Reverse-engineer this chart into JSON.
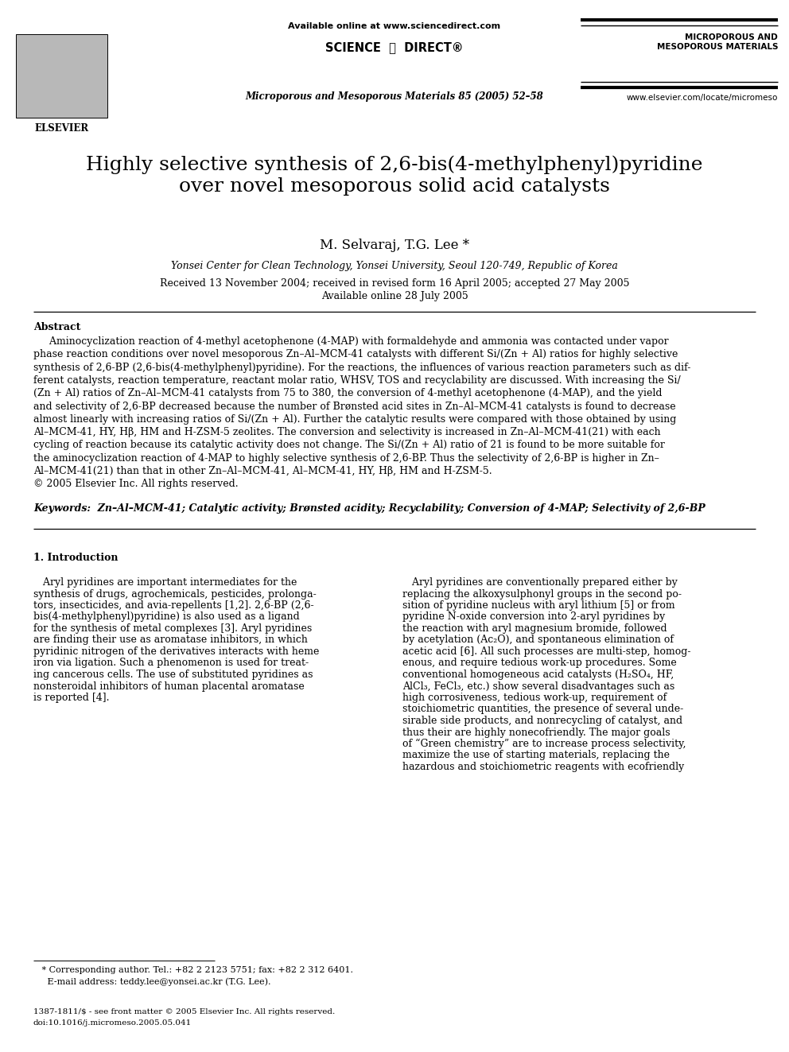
{
  "background_color": "#ffffff",
  "header": {
    "available_online": "Available online at www.sciencedirect.com",
    "journal_name": "Microporous and Mesoporous Materials 85 (2005) 52–58",
    "journal_right_top": "MICROPOROUS AND\nMESOPOROUS MATERIALS",
    "journal_right_bottom": "www.elsevier.com/locate/micromeso",
    "elsevier_label": "ELSEVIER"
  },
  "title": "Highly selective synthesis of 2,6-bis(4-methylphenyl)pyridine\nover novel mesoporous solid acid catalysts",
  "authors": "M. Selvaraj, T.G. Lee *",
  "affiliation": "Yonsei Center for Clean Technology, Yonsei University, Seoul 120-749, Republic of Korea",
  "received_line1": "Received 13 November 2004; received in revised form 16 April 2005; accepted 27 May 2005",
  "received_line2": "Available online 28 July 2005",
  "abstract_title": "Abstract",
  "abstract_text": "     Aminocyclization reaction of 4-methyl acetophenone (4-MAP) with formaldehyde and ammonia was contacted under vapor\nphase reaction conditions over novel mesoporous Zn–Al–MCM-41 catalysts with different Si/(Zn + Al) ratios for highly selective\nsynthesis of 2,6-BP (2,6-bis(4-methylphenyl)pyridine). For the reactions, the influences of various reaction parameters such as dif-\nferent catalysts, reaction temperature, reactant molar ratio, WHSV, TOS and recyclability are discussed. With increasing the Si/\n(Zn + Al) ratios of Zn–Al–MCM-41 catalysts from 75 to 380, the conversion of 4-methyl acetophenone (4-MAP), and the yield\nand selectivity of 2,6-BP decreased because the number of Brønsted acid sites in Zn–Al–MCM-41 catalysts is found to decrease\nalmost linearly with increasing ratios of Si/(Zn + Al). Further the catalytic results were compared with those obtained by using\nAl–MCM-41, HY, Hβ, HM and H-ZSM-5 zeolites. The conversion and selectivity is increased in Zn–Al–MCM-41(21) with each\ncycling of reaction because its catalytic activity does not change. The Si/(Zn + Al) ratio of 21 is found to be more suitable for\nthe aminocyclization reaction of 4-MAP to highly selective synthesis of 2,6-BP. Thus the selectivity of 2,6-BP is higher in Zn–\nAl–MCM-41(21) than that in other Zn–Al–MCM-41, Al–MCM-41, HY, Hβ, HM and H-ZSM-5.\n© 2005 Elsevier Inc. All rights reserved.",
  "keywords": "Keywords:  Zn–Al–MCM-41; Catalytic activity; Brønsted acidity; Recyclability; Conversion of 4-MAP; Selectivity of 2,6-BP",
  "section1_title": "1. Introduction",
  "intro_left_lines": [
    "   Aryl pyridines are important intermediates for the",
    "synthesis of drugs, agrochemicals, pesticides, prolonga-",
    "tors, insecticides, and avia-repellents [1,2]. 2,6-BP (2,6-",
    "bis(4-methylphenyl)pyridine) is also used as a ligand",
    "for the synthesis of metal complexes [3]. Aryl pyridines",
    "are finding their use as aromatase inhibitors, in which",
    "pyridinic nitrogen of the derivatives interacts with heme",
    "iron via ligation. Such a phenomenon is used for treat-",
    "ing cancerous cells. The use of substituted pyridines as",
    "nonsteroidal inhibitors of human placental aromatase",
    "is reported [4]."
  ],
  "intro_right_lines": [
    "   Aryl pyridines are conventionally prepared either by",
    "replacing the alkoxysulphonyl groups in the second po-",
    "sition of pyridine nucleus with aryl lithium [5] or from",
    "pyridine N-oxide conversion into 2-aryl pyridines by",
    "the reaction with aryl magnesium bromide, followed",
    "by acetylation (Ac₂O), and spontaneous elimination of",
    "acetic acid [6]. All such processes are multi-step, homog-",
    "enous, and require tedious work-up procedures. Some",
    "conventional homogeneous acid catalysts (H₂SO₄, HF,",
    "AlCl₃, FeCl₃, etc.) show several disadvantages such as",
    "high corrosiveness, tedious work-up, requirement of",
    "stoichiometric quantities, the presence of several unde-",
    "sirable side products, and nonrecycling of catalyst, and",
    "thus their are highly nonecofriendly. The major goals",
    "of “Green chemistry” are to increase process selectivity,",
    "maximize the use of starting materials, replacing the",
    "hazardous and stoichiometric reagents with ecofriendly"
  ],
  "footnote_star": "   * Corresponding author. Tel.: +82 2 2123 5751; fax: +82 2 312 6401.",
  "footnote_email": "     E-mail address: teddy.lee@yonsei.ac.kr (T.G. Lee).",
  "footnote_bottom1": "1387-1811/$ - see front matter © 2005 Elsevier Inc. All rights reserved.",
  "footnote_bottom2": "doi:10.1016/j.micromeso.2005.05.041"
}
